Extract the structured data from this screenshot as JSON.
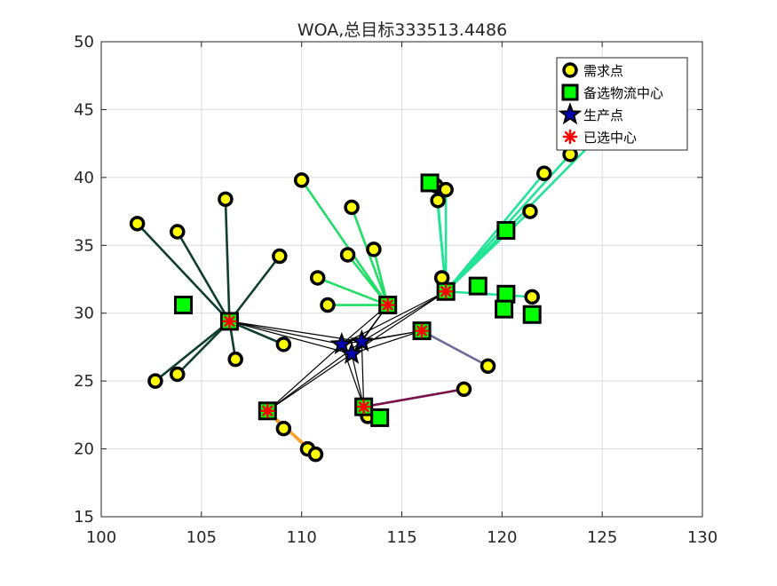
{
  "chart_data": {
    "type": "scatter",
    "title": "WOA,总目标333513.4486",
    "xlabel": "",
    "ylabel": "",
    "xlim": [
      100,
      130
    ],
    "ylim": [
      15,
      50
    ],
    "xticks": [
      100,
      105,
      110,
      115,
      120,
      125,
      130
    ],
    "yticks": [
      15,
      20,
      25,
      30,
      35,
      40,
      45,
      50
    ],
    "grid": true,
    "legend_position": "top-right",
    "legend": [
      {
        "label": "需求点",
        "marker": "circle",
        "color": "#ffff00"
      },
      {
        "label": "备选物流中心",
        "marker": "square",
        "color": "#00ff00"
      },
      {
        "label": "生产点",
        "marker": "star",
        "color": "#0000b0"
      },
      {
        "label": "已选中心",
        "marker": "asterisk",
        "color": "#ff0000"
      }
    ],
    "demand_points": [
      [
        101.8,
        36.6
      ],
      [
        103.8,
        36.0
      ],
      [
        106.2,
        38.4
      ],
      [
        108.9,
        34.2
      ],
      [
        103.8,
        25.5
      ],
      [
        102.7,
        25.0
      ],
      [
        106.7,
        26.6
      ],
      [
        109.1,
        27.7
      ],
      [
        110.0,
        39.8
      ],
      [
        112.5,
        37.8
      ],
      [
        110.8,
        32.6
      ],
      [
        111.3,
        30.6
      ],
      [
        112.3,
        34.3
      ],
      [
        113.6,
        34.7
      ],
      [
        116.7,
        39.4
      ],
      [
        117.2,
        39.1
      ],
      [
        116.8,
        38.3
      ],
      [
        117.0,
        32.6
      ],
      [
        121.4,
        37.5
      ],
      [
        122.1,
        40.3
      ],
      [
        123.4,
        41.7
      ],
      [
        126.6,
        45.7
      ],
      [
        121.5,
        31.2
      ],
      [
        119.3,
        26.1
      ],
      [
        118.1,
        24.4
      ],
      [
        113.3,
        22.4
      ],
      [
        109.1,
        21.5
      ],
      [
        110.3,
        20.0
      ],
      [
        110.7,
        19.6
      ]
    ],
    "candidate_centers": [
      [
        104.1,
        30.6
      ],
      [
        106.4,
        29.4
      ],
      [
        108.3,
        22.8
      ],
      [
        113.1,
        23.1
      ],
      [
        113.9,
        22.3
      ],
      [
        114.3,
        30.6
      ],
      [
        116.0,
        28.7
      ],
      [
        116.4,
        39.6
      ],
      [
        117.2,
        31.6
      ],
      [
        118.8,
        32.0
      ],
      [
        120.2,
        36.1
      ],
      [
        120.2,
        31.4
      ],
      [
        120.1,
        30.3
      ],
      [
        121.5,
        29.9
      ]
    ],
    "production_points": [
      [
        112.0,
        27.7
      ],
      [
        112.5,
        27.0
      ],
      [
        113.0,
        27.9
      ]
    ],
    "selected_centers": [
      [
        106.4,
        29.4
      ],
      [
        108.3,
        22.8
      ],
      [
        113.1,
        23.1
      ],
      [
        114.3,
        30.6
      ],
      [
        116.0,
        28.7
      ],
      [
        117.2,
        31.6
      ]
    ],
    "assignments": [
      {
        "center": [
          106.4,
          29.4
        ],
        "color": "#0f3d2e",
        "demands": [
          [
            101.8,
            36.6
          ],
          [
            103.8,
            36.0
          ],
          [
            106.2,
            38.4
          ],
          [
            108.9,
            34.2
          ],
          [
            103.8,
            25.5
          ],
          [
            102.7,
            25.0
          ],
          [
            106.7,
            26.6
          ],
          [
            109.1,
            27.7
          ]
        ]
      },
      {
        "center": [
          114.3,
          30.6
        ],
        "color": "#22dd66",
        "demands": [
          [
            110.0,
            39.8
          ],
          [
            112.5,
            37.8
          ],
          [
            110.8,
            32.6
          ],
          [
            111.3,
            30.6
          ],
          [
            112.3,
            34.3
          ],
          [
            113.6,
            34.7
          ]
        ]
      },
      {
        "center": [
          117.2,
          31.6
        ],
        "color": "#22e398",
        "demands": [
          [
            116.7,
            39.4
          ],
          [
            117.2,
            39.1
          ],
          [
            116.8,
            38.3
          ],
          [
            117.0,
            32.6
          ],
          [
            121.4,
            37.5
          ],
          [
            122.1,
            40.3
          ],
          [
            123.4,
            41.7
          ],
          [
            126.6,
            45.7
          ],
          [
            121.5,
            31.2
          ]
        ]
      },
      {
        "center": [
          116.0,
          28.7
        ],
        "color": "#6b6b9a",
        "demands": [
          [
            119.3,
            26.1
          ]
        ]
      },
      {
        "center": [
          113.1,
          23.1
        ],
        "color": "#7a1048",
        "demands": [
          [
            118.1,
            24.4
          ],
          [
            113.3,
            22.4
          ]
        ]
      },
      {
        "center": [
          108.3,
          22.8
        ],
        "color": "#ffa028",
        "demands": [
          [
            109.1,
            21.5
          ],
          [
            110.3,
            20.0
          ],
          [
            110.7,
            19.6
          ]
        ]
      }
    ]
  }
}
